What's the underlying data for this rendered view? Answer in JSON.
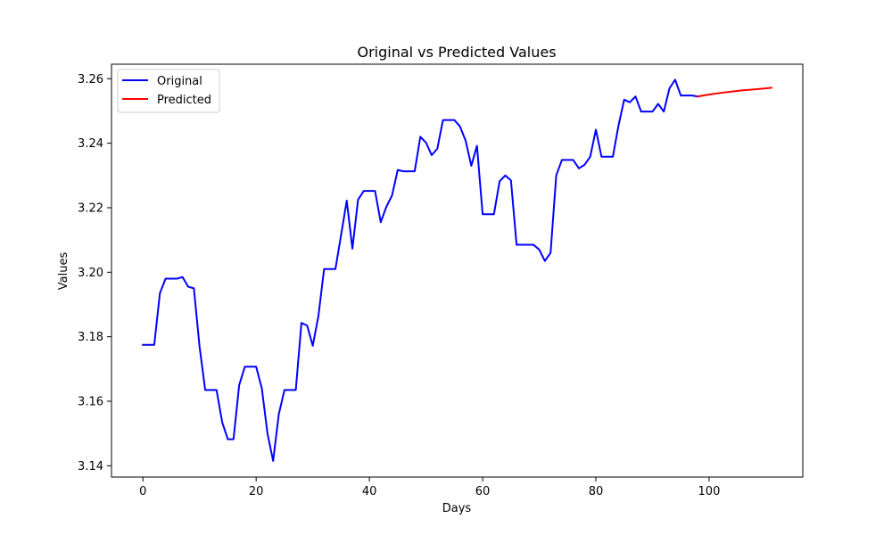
{
  "chart_data": {
    "type": "line",
    "title": "Original vs Predicted Values",
    "xlabel": "Days",
    "ylabel": "Values",
    "xlim": [
      -5.55,
      116.55
    ],
    "ylim": [
      3.1365,
      3.2645
    ],
    "xticks": [
      0,
      20,
      40,
      60,
      80,
      100
    ],
    "yticks": [
      3.14,
      3.16,
      3.18,
      3.2,
      3.22,
      3.24,
      3.26
    ],
    "grid": false,
    "legend": "top-left",
    "series": [
      {
        "name": "Original",
        "color": "#0000ff",
        "x": [
          0,
          1,
          2,
          3,
          4,
          5,
          6,
          7,
          8,
          9,
          10,
          11,
          12,
          13,
          14,
          15,
          16,
          17,
          18,
          19,
          20,
          21,
          22,
          23,
          24,
          25,
          26,
          27,
          28,
          29,
          30,
          31,
          32,
          33,
          34,
          35,
          36,
          37,
          38,
          39,
          40,
          41,
          42,
          43,
          44,
          45,
          46,
          47,
          48,
          49,
          50,
          51,
          52,
          53,
          54,
          55,
          56,
          57,
          58,
          59,
          60,
          61,
          62,
          63,
          64,
          65,
          66,
          67,
          68,
          69,
          70,
          71,
          72,
          73,
          74,
          75,
          76,
          77,
          78,
          79,
          80,
          81,
          82,
          83,
          84,
          85,
          86,
          87,
          88,
          89,
          90,
          91,
          92,
          93,
          94,
          95,
          96,
          97,
          98
        ],
        "y": [
          3.1775,
          3.1775,
          3.1775,
          3.1935,
          3.198,
          3.198,
          3.198,
          3.1985,
          3.1955,
          3.195,
          3.177,
          3.1635,
          3.1635,
          3.1635,
          3.1535,
          3.1482,
          3.1482,
          3.165,
          3.1707,
          3.1707,
          3.1707,
          3.164,
          3.15,
          3.1415,
          3.156,
          3.1635,
          3.1635,
          3.1635,
          3.1843,
          3.1835,
          3.1772,
          3.1865,
          3.201,
          3.201,
          3.201,
          3.2115,
          3.2222,
          3.2073,
          3.2225,
          3.2252,
          3.2252,
          3.2252,
          3.2155,
          3.2203,
          3.2238,
          3.2317,
          3.2313,
          3.2313,
          3.2313,
          3.242,
          3.2402,
          3.2363,
          3.2383,
          3.2472,
          3.2472,
          3.2472,
          3.2452,
          3.2408,
          3.233,
          3.2392,
          3.218,
          3.218,
          3.218,
          3.2282,
          3.23,
          3.2285,
          3.2085,
          3.2085,
          3.2085,
          3.2085,
          3.207,
          3.2035,
          3.206,
          3.23,
          3.2348,
          3.2348,
          3.2348,
          3.2322,
          3.2333,
          3.2358,
          3.2442,
          3.2358,
          3.2358,
          3.2358,
          3.2455,
          3.2535,
          3.2527,
          3.2545,
          3.2498,
          3.2498,
          3.2498,
          3.2522,
          3.2498,
          3.257,
          3.2597,
          3.2548,
          3.2548,
          3.2548,
          3.2545
        ]
      },
      {
        "name": "Predicted",
        "color": "#ff0000",
        "x": [
          98,
          100,
          102,
          104,
          106,
          108,
          110,
          111
        ],
        "y": [
          3.2545,
          3.2551,
          3.2556,
          3.256,
          3.2564,
          3.2567,
          3.257,
          3.2572
        ]
      }
    ]
  }
}
